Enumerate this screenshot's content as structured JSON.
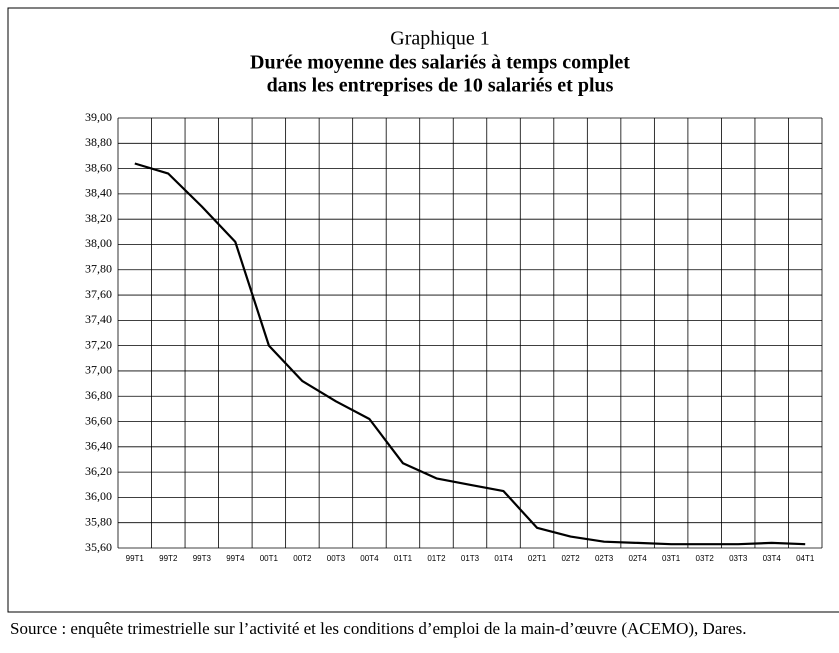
{
  "chart_data": {
    "type": "line",
    "title": "Graphique 1",
    "subtitle": [
      "Durée moyenne des salariés à temps complet",
      "dans les entreprises de 10 salariés et plus"
    ],
    "categories": [
      "99T1",
      "99T2",
      "99T3",
      "99T4",
      "00T1",
      "00T2",
      "00T3",
      "00T4",
      "01T1",
      "01T2",
      "01T3",
      "01T4",
      "02T1",
      "02T2",
      "02T3",
      "02T4",
      "03T1",
      "03T2",
      "03T3",
      "03T4",
      "04T1"
    ],
    "values": [
      38.64,
      38.56,
      38.3,
      38.02,
      37.2,
      36.92,
      36.76,
      36.62,
      36.27,
      36.15,
      36.1,
      36.05,
      35.76,
      35.69,
      35.65,
      35.64,
      35.63,
      35.63,
      35.63,
      35.64,
      35.63
    ],
    "color": "#000000",
    "ylim": [
      35.6,
      39.0
    ],
    "yticks": [
      {
        "value": 35.6,
        "label": "35,60"
      },
      {
        "value": 35.8,
        "label": "35,80"
      },
      {
        "value": 36.0,
        "label": "36,00"
      },
      {
        "value": 36.2,
        "label": "36,20"
      },
      {
        "value": 36.4,
        "label": "36,40"
      },
      {
        "value": 36.6,
        "label": "36,60"
      },
      {
        "value": 36.8,
        "label": "36,80"
      },
      {
        "value": 37.0,
        "label": "37,00"
      },
      {
        "value": 37.2,
        "label": "37,20"
      },
      {
        "value": 37.4,
        "label": "37,40"
      },
      {
        "value": 37.6,
        "label": "37,60"
      },
      {
        "value": 37.8,
        "label": "37,80"
      },
      {
        "value": 38.0,
        "label": "38,00"
      },
      {
        "value": 38.2,
        "label": "38,20"
      },
      {
        "value": 38.4,
        "label": "38,40"
      },
      {
        "value": 38.6,
        "label": "38,60"
      },
      {
        "value": 38.8,
        "label": "38,80"
      },
      {
        "value": 39.0,
        "label": "39,00"
      }
    ],
    "grid": true,
    "source": "Source : enquête trimestrielle sur l’activité et les conditions d’emploi de la main-d’œuvre (ACEMO), Dares."
  }
}
